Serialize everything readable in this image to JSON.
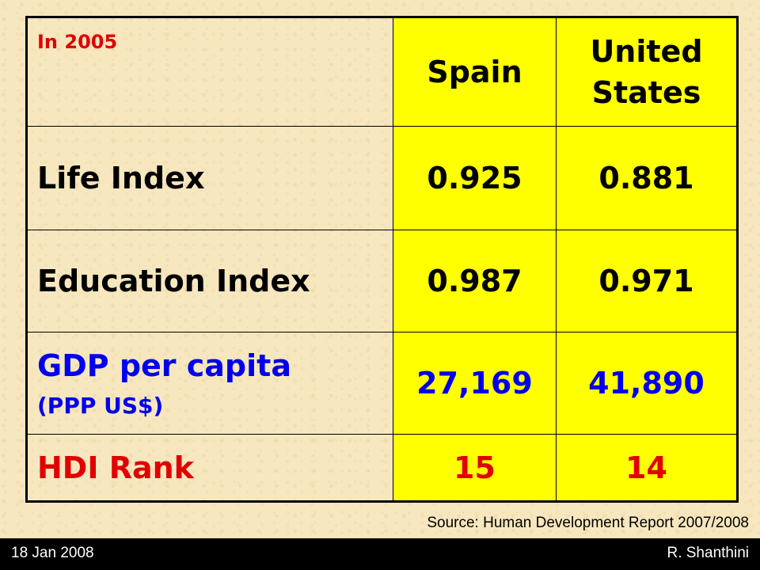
{
  "table": {
    "header": {
      "year": "In 2005",
      "col1": "Spain",
      "col2": "United States"
    },
    "rows": [
      {
        "label": "Life Index",
        "sublabel": "",
        "spain": "0.925",
        "us": "0.881"
      },
      {
        "label": "Education Index",
        "sublabel": "",
        "spain": "0.987",
        "us": "0.971"
      },
      {
        "label": "GDP per capita",
        "sublabel": "(PPP US$)",
        "spain": "27,169",
        "us": "41,890"
      },
      {
        "label": "HDI Rank",
        "sublabel": "",
        "spain": "15",
        "us": "14"
      }
    ]
  },
  "source": "Source: Human Development Report 2007/2008",
  "footer": {
    "date": "18 Jan 2008",
    "author": "R. Shanthini"
  },
  "colors": {
    "highlight": "#ffff00",
    "red_text": "#e00000",
    "blue_text": "#0000ee",
    "background": "#f7e7bf"
  }
}
